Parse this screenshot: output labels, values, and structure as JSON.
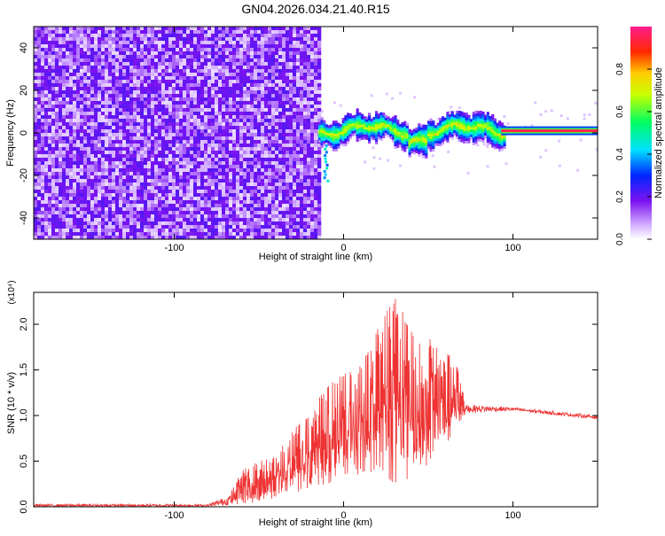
{
  "chart_data": [
    {
      "type": "heatmap",
      "title": "GN04.2026.034.21.40.R15",
      "xlabel": "Height of straight line (km)",
      "ylabel": "Frequency (Hz)",
      "xlim": [
        -183,
        150
      ],
      "ylim": [
        -50,
        50
      ],
      "xticks": [
        -100,
        0,
        100
      ],
      "yticks": [
        -40,
        -20,
        0,
        20,
        40
      ],
      "colorbar": {
        "label": "Normalized spectral amplitude",
        "range": [
          0,
          1
        ],
        "ticks": [
          "0.0",
          "0.2",
          "0.4",
          "0.6",
          "0.8"
        ]
      },
      "regions": [
        {
          "description": "broadband noise",
          "x_range": [
            -183,
            -15
          ],
          "y_range": [
            -50,
            50
          ],
          "level": 0.15
        },
        {
          "description": "narrowband signal",
          "x_range": [
            -15,
            95
          ],
          "y_center_approx": 2,
          "half_width_hz": 6,
          "level": 0.5
        },
        {
          "description": "carrier line",
          "x_range": [
            93,
            150
          ],
          "y_center": 1,
          "level": 0.95
        }
      ]
    },
    {
      "type": "line",
      "xlabel": "Height of straight line (km)",
      "ylabel": "SNR (10 * v/v)",
      "y_multiplier": "(x10⁴)",
      "xlim": [
        -183,
        150
      ],
      "ylim": [
        0,
        2.35
      ],
      "xticks": [
        -100,
        0,
        100
      ],
      "yticks": [
        "0.0",
        "0.5",
        "1.0",
        "1.5",
        "2.0"
      ],
      "series": [
        {
          "color": "#ee3333",
          "envelope_points": [
            {
              "x": -183,
              "low": 0.0,
              "high": 0.03
            },
            {
              "x": -80,
              "low": 0.0,
              "high": 0.03
            },
            {
              "x": -68,
              "low": 0.02,
              "high": 0.12
            },
            {
              "x": -60,
              "low": 0.03,
              "high": 0.4
            },
            {
              "x": -50,
              "low": 0.05,
              "high": 0.5
            },
            {
              "x": -40,
              "low": 0.1,
              "high": 0.55
            },
            {
              "x": -30,
              "low": 0.15,
              "high": 0.85
            },
            {
              "x": -20,
              "low": 0.2,
              "high": 1.0
            },
            {
              "x": -10,
              "low": 0.25,
              "high": 1.35
            },
            {
              "x": 0,
              "low": 0.3,
              "high": 1.45
            },
            {
              "x": 10,
              "low": 0.35,
              "high": 1.55
            },
            {
              "x": 20,
              "low": 0.3,
              "high": 1.95
            },
            {
              "x": 30,
              "low": 0.25,
              "high": 2.3
            },
            {
              "x": 40,
              "low": 0.3,
              "high": 2.0
            },
            {
              "x": 50,
              "low": 0.45,
              "high": 1.85
            },
            {
              "x": 60,
              "low": 0.65,
              "high": 1.75
            },
            {
              "x": 68,
              "low": 0.85,
              "high": 1.5
            },
            {
              "x": 72,
              "low": 1.03,
              "high": 1.12
            },
            {
              "x": 100,
              "low": 1.05,
              "high": 1.09
            },
            {
              "x": 150,
              "low": 0.96,
              "high": 1.0
            }
          ]
        }
      ]
    }
  ]
}
